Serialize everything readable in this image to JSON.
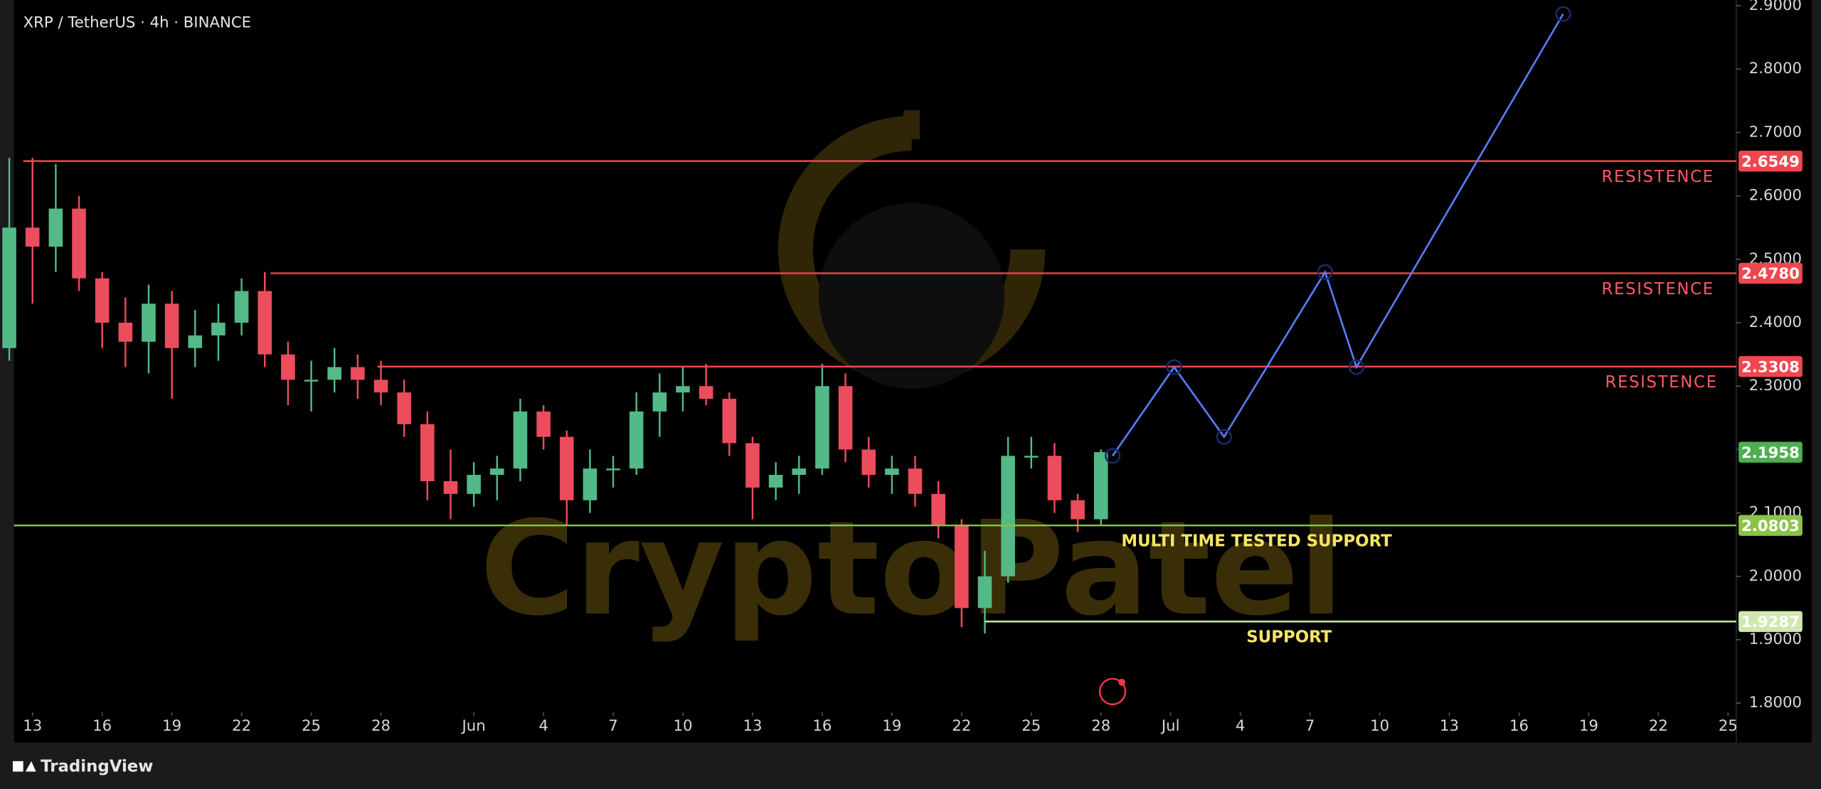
{
  "chart_data": {
    "type": "candlestick",
    "title": "XRP / TetherUS · 4h · BINANCE",
    "x": [
      132,
      133,
      134,
      135,
      136,
      137,
      138,
      139,
      140,
      141,
      142,
      143,
      144,
      145,
      146,
      147,
      148,
      149,
      150,
      151,
      152,
      153,
      154,
      155,
      156,
      157,
      158,
      159,
      160,
      161,
      162,
      163,
      164,
      165,
      166,
      167,
      168,
      169,
      170,
      171,
      172,
      173,
      174,
      175,
      176,
      177,
      178,
      179
    ],
    "open": [
      2.36,
      2.55,
      2.52,
      2.58,
      2.47,
      2.4,
      2.37,
      2.43,
      2.36,
      2.38,
      2.4,
      2.45,
      2.35,
      2.31,
      2.31,
      2.33,
      2.31,
      2.29,
      2.24,
      2.15,
      2.13,
      2.16,
      2.17,
      2.26,
      2.22,
      2.12,
      2.17,
      2.17,
      2.26,
      2.29,
      2.3,
      2.28,
      2.21,
      2.14,
      2.16,
      2.17,
      2.3,
      2.2,
      2.16,
      2.17,
      2.13,
      2.08,
      1.95,
      2.0,
      2.19,
      2.19,
      2.12,
      2.09
    ],
    "high": [
      2.66,
      2.66,
      2.65,
      2.6,
      2.48,
      2.44,
      2.46,
      2.45,
      2.42,
      2.43,
      2.47,
      2.48,
      2.37,
      2.34,
      2.36,
      2.35,
      2.34,
      2.31,
      2.26,
      2.2,
      2.18,
      2.19,
      2.28,
      2.27,
      2.23,
      2.2,
      2.19,
      2.29,
      2.32,
      2.33,
      2.335,
      2.29,
      2.22,
      2.18,
      2.19,
      2.335,
      2.32,
      2.22,
      2.19,
      2.19,
      2.15,
      2.09,
      2.04,
      2.22,
      2.22,
      2.21,
      2.13,
      2.2
    ],
    "low": [
      2.34,
      2.43,
      2.48,
      2.45,
      2.36,
      2.33,
      2.32,
      2.28,
      2.33,
      2.34,
      2.38,
      2.33,
      2.27,
      2.26,
      2.29,
      2.28,
      2.27,
      2.22,
      2.12,
      2.09,
      2.11,
      2.12,
      2.15,
      2.2,
      2.08,
      2.1,
      2.14,
      2.16,
      2.22,
      2.26,
      2.27,
      2.19,
      2.09,
      2.12,
      2.13,
      2.16,
      2.18,
      2.14,
      2.13,
      2.11,
      2.06,
      1.92,
      1.91,
      1.99,
      2.17,
      2.1,
      2.07,
      2.08
    ],
    "close": [
      2.55,
      2.52,
      2.58,
      2.47,
      2.4,
      2.37,
      2.43,
      2.36,
      2.38,
      2.4,
      2.45,
      2.35,
      2.31,
      2.31,
      2.33,
      2.31,
      2.29,
      2.24,
      2.15,
      2.13,
      2.16,
      2.17,
      2.26,
      2.22,
      2.12,
      2.17,
      2.17,
      2.26,
      2.29,
      2.3,
      2.28,
      2.21,
      2.14,
      2.16,
      2.17,
      2.3,
      2.2,
      2.16,
      2.17,
      2.13,
      2.08,
      1.95,
      2.0,
      2.19,
      2.19,
      2.12,
      2.09,
      2.1958
    ],
    "up_color": "#53b987",
    "down_color": "#eb4d5c",
    "xlim": [
      132.2,
      206.35
    ],
    "xticks": [
      {
        "value": 133,
        "label": "13"
      },
      {
        "value": 136,
        "label": "16"
      },
      {
        "value": 139,
        "label": "19"
      },
      {
        "value": 142,
        "label": "22"
      },
      {
        "value": 145,
        "label": "25"
      },
      {
        "value": 148,
        "label": "28"
      },
      {
        "value": 152,
        "label": "Jun"
      },
      {
        "value": 155,
        "label": "4"
      },
      {
        "value": 158,
        "label": "7"
      },
      {
        "value": 161,
        "label": "10"
      },
      {
        "value": 164,
        "label": "13"
      },
      {
        "value": 167,
        "label": "16"
      },
      {
        "value": 170,
        "label": "19"
      },
      {
        "value": 173,
        "label": "22"
      },
      {
        "value": 176,
        "label": "25"
      },
      {
        "value": 179,
        "label": "28"
      },
      {
        "value": 182,
        "label": "Jul"
      },
      {
        "value": 185,
        "label": "4"
      },
      {
        "value": 188,
        "label": "7"
      },
      {
        "value": 191,
        "label": "10"
      },
      {
        "value": 194,
        "label": "13"
      },
      {
        "value": 197,
        "label": "16"
      },
      {
        "value": 200,
        "label": "19"
      },
      {
        "value": 203,
        "label": "22"
      },
      {
        "value": 206,
        "label": "25"
      }
    ],
    "ylim": [
      1.789,
      2.909
    ],
    "yticks": [
      {
        "value": 1.8,
        "label": "1.8000"
      },
      {
        "value": 1.9,
        "label": "1.9000"
      },
      {
        "value": 2.0,
        "label": "2.0000"
      },
      {
        "value": 2.1,
        "label": "2.1000"
      },
      {
        "value": 2.2,
        "label": "2.2000"
      },
      {
        "value": 2.3,
        "label": "2.3000"
      },
      {
        "value": 2.4,
        "label": "2.4000"
      },
      {
        "value": 2.5,
        "label": "2.5000"
      },
      {
        "value": 2.6,
        "label": "2.6000"
      },
      {
        "value": 2.7,
        "label": "2.7000"
      },
      {
        "value": 2.8,
        "label": "2.8000"
      },
      {
        "value": 2.9,
        "label": "2.9000"
      }
    ],
    "levels": [
      {
        "value": 2.6549,
        "label": "2.6549",
        "color": "#f0464f",
        "start": 132.6,
        "annotation": "RESISTENCE",
        "annotation_color": "#ff5a62"
      },
      {
        "value": 2.478,
        "label": "2.4780",
        "color": "#f0464f",
        "start": 143.25,
        "annotation": "RESISTENCE",
        "annotation_color": "#ff5a62"
      },
      {
        "value": 2.3308,
        "label": "2.3308",
        "color": "#f0464f",
        "start": 147.85,
        "annotation": "RESISTENCE",
        "annotation_color": "#ff5a62"
      },
      {
        "value": 2.0803,
        "label": "2.0803",
        "color": "#8bc34a",
        "start": 132.2,
        "annotation": "MULTI TIME TESTED SUPPORT",
        "annotation_color": "#f5e663"
      },
      {
        "value": 1.9287,
        "label": "1.9287",
        "color": "#cfe8b0",
        "start": 174,
        "annotation": "SUPPORT",
        "annotation_color": "#f5e663"
      }
    ],
    "last_price": {
      "value": 2.1958,
      "label": "2.1958",
      "color": "#4caf50"
    },
    "projection": {
      "color": "#5b7cff",
      "x": [
        179.5,
        182.15,
        184.3,
        188.65,
        190,
        198.9
      ],
      "values": [
        2.19,
        2.33,
        2.22,
        2.48,
        2.33,
        2.887
      ]
    },
    "watermark": "CryptoPatel",
    "footer": "TradingView"
  }
}
